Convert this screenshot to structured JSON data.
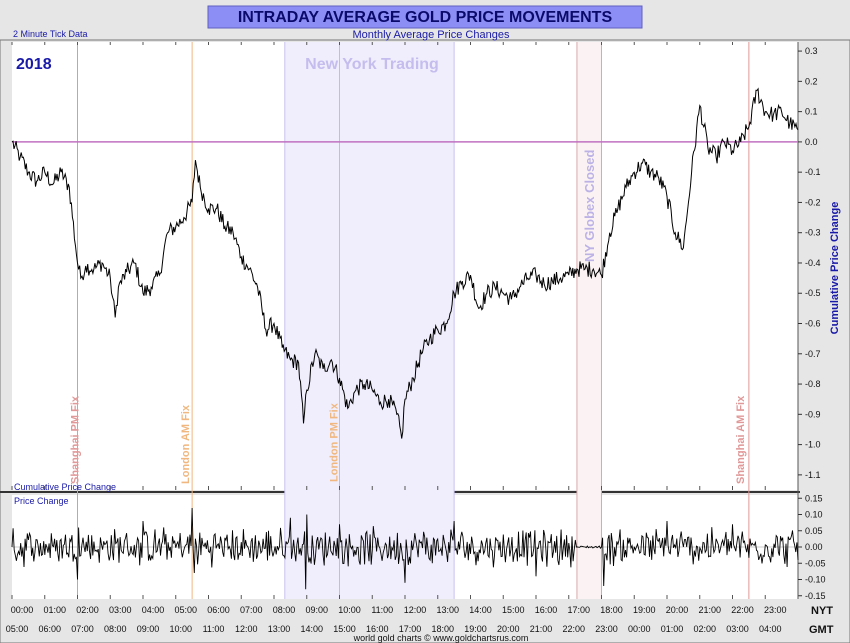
{
  "header": {
    "title": "INTRADAY AVERAGE GOLD PRICE MOVEMENTS",
    "subtitle": "Monthly Average Price Changes",
    "tick_note": "2 Minute Tick Data",
    "year": "2018",
    "credit": "world gold charts © www.goldchartsrus.com"
  },
  "colors": {
    "title_bar": "#8d8df6",
    "title_text": "#0a0a6a",
    "plot_bg": "#ffffff",
    "series": "#000000",
    "zero_line": "#c070c0",
    "ny_band": "#f0eefc",
    "ny_text": "#c4bdee",
    "globex_band": "#fbf3f3",
    "globex_line": "#d8aaaa",
    "globex_text": "#bcb2e6",
    "shanghai": "#e09898",
    "london": "#f0b880",
    "axis_label": "#1a1aa8"
  },
  "annotations": {
    "ny_trading": "New York Trading",
    "ny_globex_closed": "NY Globex Closed",
    "shanghai_pm_fix": "Shanghai PM Fix",
    "london_am_fix": "London AM Fix",
    "london_pm_fix": "London PM Fix",
    "shanghai_am_fix": "Shanghai AM Fix"
  },
  "axis": {
    "nyt_label": "NYT",
    "gmt_label": "GMT",
    "nyt_ticks": [
      "00:00",
      "01:00",
      "02:00",
      "03:00",
      "04:00",
      "05:00",
      "06:00",
      "07:00",
      "08:00",
      "09:00",
      "10:00",
      "11:00",
      "12:00",
      "13:00",
      "14:00",
      "15:00",
      "16:00",
      "17:00",
      "18:00",
      "19:00",
      "20:00",
      "21:00",
      "22:00",
      "23:00"
    ],
    "gmt_ticks": [
      "05:00",
      "06:00",
      "07:00",
      "08:00",
      "09:00",
      "10:00",
      "11:00",
      "12:00",
      "13:00",
      "14:00",
      "15:00",
      "16:00",
      "17:00",
      "18:00",
      "19:00",
      "20:00",
      "21:00",
      "22:00",
      "23:00",
      "00:00",
      "01:00",
      "02:00",
      "03:00",
      "04:00"
    ]
  },
  "chart_data": [
    {
      "type": "line",
      "title": "Cumulative Price Change",
      "ylabel": "Cumulative Price Change",
      "xlabel": "",
      "ylim": [
        -1.15,
        0.33
      ],
      "yticks": [
        0.3,
        0.2,
        0.1,
        0.0,
        -0.1,
        -0.2,
        -0.3,
        -0.4,
        -0.5,
        -0.6,
        -0.7,
        -0.8,
        -0.9,
        -1.0,
        -1.1
      ],
      "ytick_labels": [
        "0.3",
        "0.2",
        "0.1",
        "0.0",
        "-0.1",
        "-0.2",
        "-0.3",
        "-0.4",
        "-0.5",
        "-0.6",
        "-0.7",
        "-0.8",
        "-0.9",
        "-1.0",
        "-1.1"
      ],
      "x_unit": "hours after 00:00 NYT",
      "xlim": [
        0,
        24
      ],
      "reference_lines": [
        {
          "label": "Shanghai PM Fix",
          "x": 2.0
        },
        {
          "label": "London AM Fix",
          "x": 5.5
        },
        {
          "label": "London PM Fix",
          "x": 10.0
        },
        {
          "label": "Shanghai AM Fix",
          "x": 22.5
        }
      ],
      "bands": [
        {
          "label": "New York Trading",
          "x": [
            8.33,
            13.5
          ]
        },
        {
          "label": "NY Globex Closed",
          "x": [
            17.25,
            18.0
          ]
        }
      ],
      "series": [
        {
          "x": [
            0,
            0.25,
            0.5,
            0.75,
            1.0,
            1.25,
            1.5,
            1.75,
            2.0,
            2.1,
            2.25,
            2.5,
            2.75,
            3.0,
            3.15,
            3.25,
            3.5,
            3.75,
            4.0,
            4.25,
            4.5,
            4.75,
            5.0,
            5.25,
            5.5,
            5.6,
            5.75,
            6.0,
            6.25,
            6.5,
            6.75,
            7.0,
            7.25,
            7.5,
            7.75,
            8.0,
            8.25,
            8.5,
            8.75,
            8.9,
            9.0,
            9.25,
            9.5,
            9.75,
            10.0,
            10.25,
            10.5,
            10.75,
            11.0,
            11.25,
            11.5,
            11.75,
            11.9,
            12.0,
            12.25,
            12.5,
            12.75,
            13.0,
            13.25,
            13.5,
            13.75,
            14.0,
            14.25,
            14.5,
            14.75,
            15.0,
            15.25,
            15.5,
            15.75,
            16.0,
            16.25,
            16.5,
            16.75,
            17.0,
            17.25,
            17.5,
            17.75,
            18.0,
            18.25,
            18.5,
            18.75,
            19.0,
            19.25,
            19.5,
            19.75,
            20.0,
            20.25,
            20.5,
            20.75,
            21.0,
            21.25,
            21.5,
            21.75,
            22.0,
            22.25,
            22.5,
            22.75,
            23.0,
            23.25,
            23.5,
            23.75,
            24.0
          ],
          "values": [
            0.0,
            -0.05,
            -0.1,
            -0.13,
            -0.1,
            -0.14,
            -0.1,
            -0.15,
            -0.4,
            -0.45,
            -0.41,
            -0.42,
            -0.4,
            -0.45,
            -0.58,
            -0.48,
            -0.43,
            -0.4,
            -0.5,
            -0.48,
            -0.44,
            -0.3,
            -0.28,
            -0.25,
            -0.2,
            -0.06,
            -0.15,
            -0.22,
            -0.22,
            -0.28,
            -0.3,
            -0.38,
            -0.42,
            -0.48,
            -0.62,
            -0.6,
            -0.68,
            -0.72,
            -0.73,
            -0.93,
            -0.82,
            -0.7,
            -0.75,
            -0.72,
            -0.78,
            -0.88,
            -0.82,
            -0.8,
            -0.82,
            -0.86,
            -0.85,
            -0.9,
            -0.98,
            -0.85,
            -0.78,
            -0.7,
            -0.65,
            -0.62,
            -0.6,
            -0.5,
            -0.46,
            -0.44,
            -0.55,
            -0.5,
            -0.48,
            -0.5,
            -0.52,
            -0.48,
            -0.45,
            -0.44,
            -0.47,
            -0.46,
            -0.45,
            -0.44,
            -0.42,
            -0.42,
            -0.42,
            -0.44,
            -0.3,
            -0.22,
            -0.15,
            -0.1,
            -0.07,
            -0.1,
            -0.12,
            -0.18,
            -0.3,
            -0.35,
            -0.1,
            0.12,
            -0.02,
            -0.05,
            0.0,
            -0.03,
            0.0,
            0.05,
            0.17,
            0.1,
            0.09,
            0.1,
            0.06,
            0.04
          ]
        }
      ]
    },
    {
      "type": "line",
      "title": "Price Change",
      "ylabel": "",
      "xlabel": "",
      "ylim": [
        -0.16,
        0.16
      ],
      "yticks": [
        0.15,
        0.1,
        0.05,
        0.0,
        -0.05,
        -0.1,
        -0.15
      ],
      "ytick_labels": [
        "0.15",
        "0.10",
        "0.05",
        "0.00",
        "-0.05",
        "-0.10",
        "-0.15"
      ],
      "x_unit": "hours after 00:00 NYT",
      "xlim": [
        0,
        24
      ],
      "series": [
        {
          "x": [
            0,
            2,
            2.05,
            4,
            5.5,
            5.55,
            8.5,
            8.95,
            9,
            10,
            12,
            13.5,
            16,
            17.25,
            18,
            18.05,
            20,
            22,
            24
          ],
          "values": [
            0.0,
            -0.1,
            0.06,
            0.08,
            0.12,
            -0.08,
            0.09,
            -0.13,
            0.1,
            0.07,
            -0.11,
            0.08,
            -0.09,
            0.0,
            0.0,
            -0.12,
            0.08,
            0.07,
            -0.04
          ]
        }
      ]
    }
  ]
}
